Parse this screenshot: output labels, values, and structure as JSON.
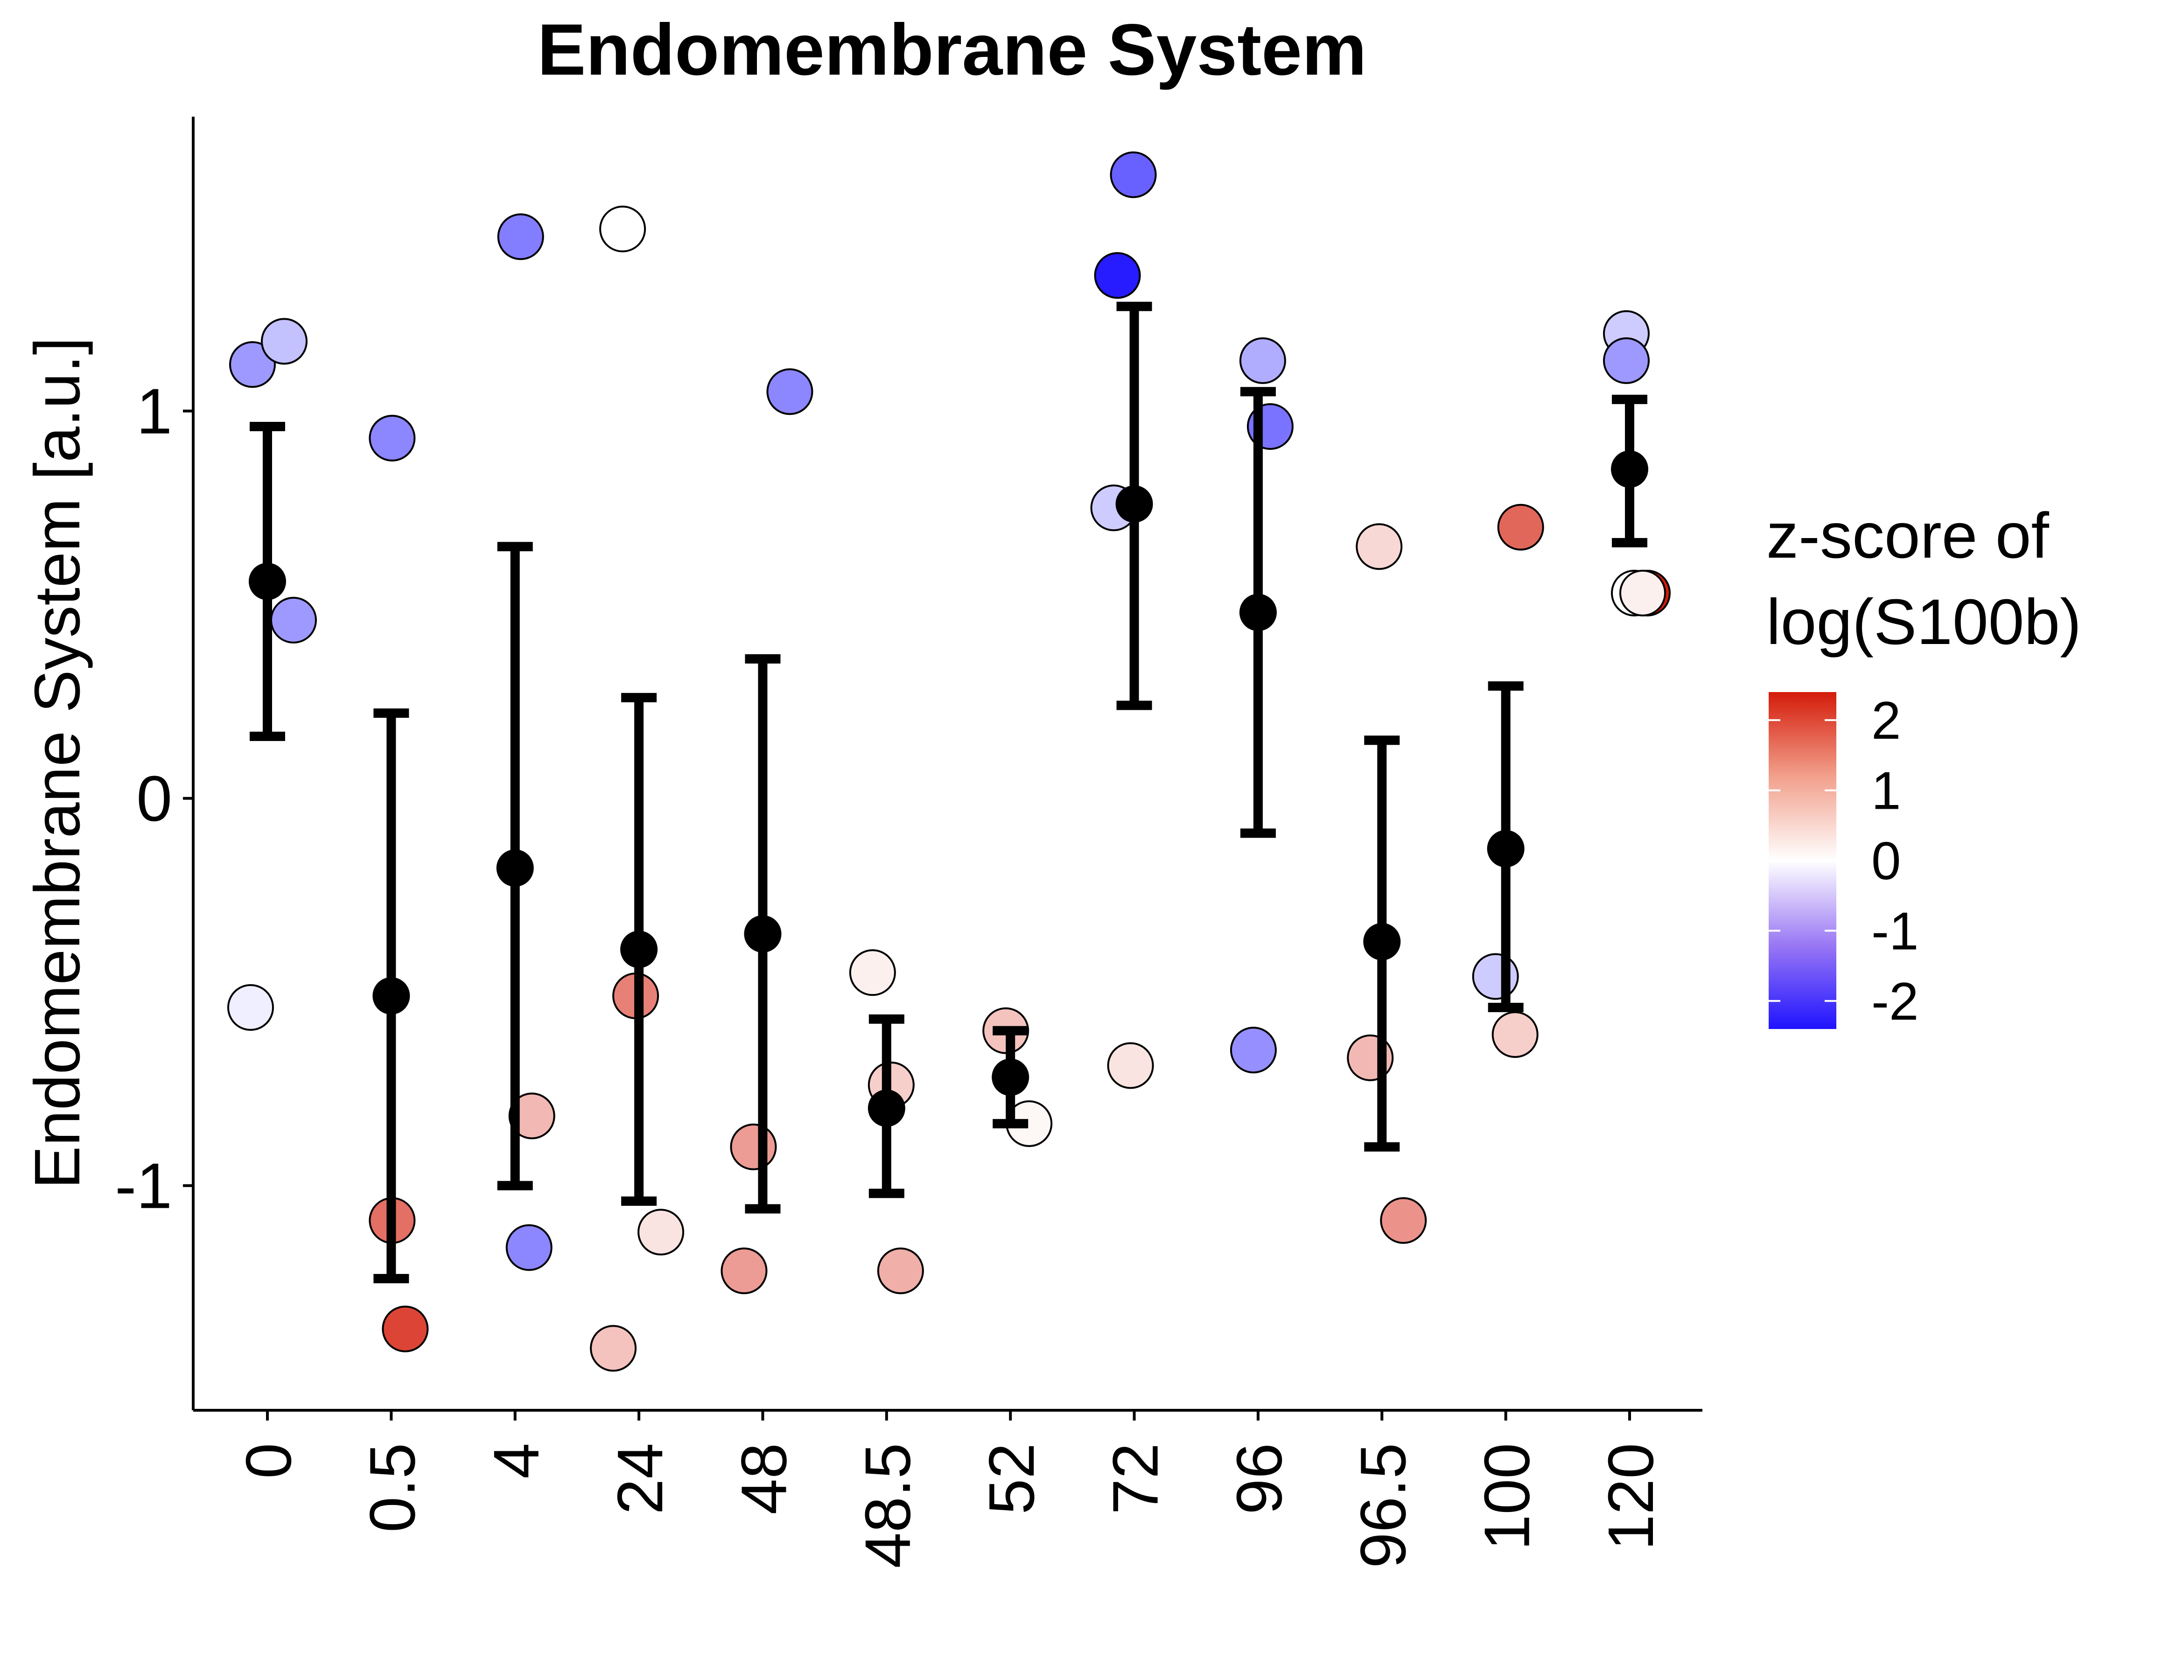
{
  "chart_data": {
    "type": "scatter",
    "title": "Endomembrane System",
    "xlabel": "",
    "ylabel": "Endomembrane System [a.u.]",
    "categories": [
      "0",
      "0.5",
      "4",
      "24",
      "48",
      "48.5",
      "52",
      "72",
      "96",
      "96.5",
      "100",
      "120"
    ],
    "yticks": [
      -1,
      0,
      1
    ],
    "ytick_labels": [
      "-1",
      "0",
      "1"
    ],
    "ylim": [
      -1.58,
      1.76
    ],
    "grid": false,
    "legend": {
      "title_lines": [
        "z-score of",
        "log(S100b)"
      ],
      "position": "right",
      "ticks": [
        2,
        1,
        0,
        -1,
        -2
      ],
      "tick_labels": [
        "2",
        "1",
        "0",
        "-1",
        "-2"
      ],
      "range": [
        -2.4,
        2.4
      ],
      "colors": {
        "low": "#1f14ff",
        "mid": "#ffffff",
        "high": "#d41c0a"
      }
    },
    "series": [
      {
        "kind": "points",
        "points": [
          {
            "x": "0",
            "y": 1.12,
            "z": -0.9
          },
          {
            "x": "0",
            "y": 1.18,
            "z": -0.5
          },
          {
            "x": "0",
            "y": 0.46,
            "z": -0.9
          },
          {
            "x": "0",
            "y": -0.54,
            "z": -0.1
          },
          {
            "x": "0.5",
            "y": 0.93,
            "z": -1.1
          },
          {
            "x": "0.5",
            "y": -1.09,
            "z": 1.4
          },
          {
            "x": "0.5",
            "y": -1.37,
            "z": 1.9
          },
          {
            "x": "4",
            "y": 1.45,
            "z": -1.2
          },
          {
            "x": "4",
            "y": -0.82,
            "z": 0.6
          },
          {
            "x": "4",
            "y": -1.16,
            "z": -1.1
          },
          {
            "x": "24",
            "y": 1.47,
            "z": 0.0
          },
          {
            "x": "24",
            "y": -0.51,
            "z": 1.2
          },
          {
            "x": "24",
            "y": -1.12,
            "z": 0.2
          },
          {
            "x": "24",
            "y": -1.42,
            "z": 0.5
          },
          {
            "x": "48",
            "y": 1.05,
            "z": -1.1
          },
          {
            "x": "48",
            "y": -0.9,
            "z": 0.9
          },
          {
            "x": "48",
            "y": -1.22,
            "z": 0.9
          },
          {
            "x": "48.5",
            "y": -0.45,
            "z": 0.1
          },
          {
            "x": "48.5",
            "y": -0.74,
            "z": 0.4
          },
          {
            "x": "48.5",
            "y": -1.22,
            "z": 0.7
          },
          {
            "x": "52",
            "y": -0.6,
            "z": 0.5
          },
          {
            "x": "52",
            "y": -0.84,
            "z": 0.05
          },
          {
            "x": "72",
            "y": 1.61,
            "z": -1.5
          },
          {
            "x": "72",
            "y": 1.35,
            "z": -2.3
          },
          {
            "x": "72",
            "y": 0.75,
            "z": -0.4
          },
          {
            "x": "72",
            "y": -0.69,
            "z": 0.2
          },
          {
            "x": "96",
            "y": 1.13,
            "z": -0.7
          },
          {
            "x": "96",
            "y": 0.96,
            "z": -1.3
          },
          {
            "x": "96",
            "y": -0.65,
            "z": -1.0
          },
          {
            "x": "96.5",
            "y": 0.65,
            "z": 0.3
          },
          {
            "x": "96.5",
            "y": -0.67,
            "z": 0.6
          },
          {
            "x": "96.5",
            "y": -1.09,
            "z": 1.0
          },
          {
            "x": "100",
            "y": 0.7,
            "z": 1.5
          },
          {
            "x": "100",
            "y": -0.46,
            "z": -0.4
          },
          {
            "x": "100",
            "y": -0.61,
            "z": 0.4
          },
          {
            "x": "120",
            "y": 1.2,
            "z": -0.4
          },
          {
            "x": "120",
            "y": 1.13,
            "z": -0.9
          },
          {
            "x": "120",
            "y": 0.53,
            "z": 2.4
          },
          {
            "x": "120",
            "y": 0.53,
            "z": 0.0
          },
          {
            "x": "120",
            "y": 0.53,
            "z": 0.1
          }
        ]
      },
      {
        "kind": "mean_errorbar",
        "means": [
          0.56,
          -0.51,
          -0.18,
          -0.39,
          -0.35,
          -0.8,
          -0.72,
          0.76,
          0.48,
          -0.37,
          -0.13,
          0.85
        ],
        "lower": [
          0.16,
          -1.24,
          -1.0,
          -1.04,
          -1.06,
          -1.02,
          -0.84,
          0.24,
          -0.09,
          -0.9,
          -0.54,
          0.66
        ],
        "upper": [
          0.96,
          0.22,
          0.65,
          0.26,
          0.36,
          -0.57,
          -0.6,
          1.27,
          1.05,
          0.15,
          0.29,
          1.03
        ]
      }
    ]
  }
}
